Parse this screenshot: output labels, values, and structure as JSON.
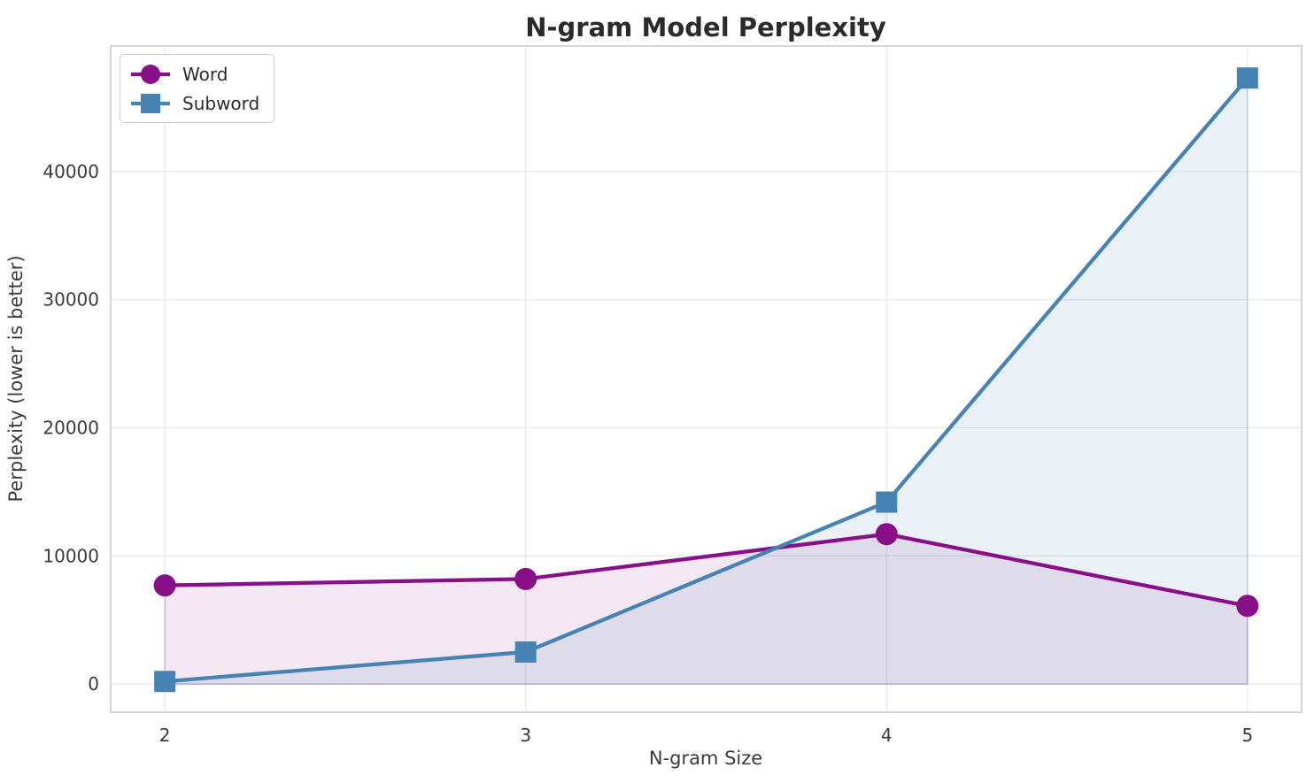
{
  "chart_data": {
    "type": "line",
    "title": "N-gram Model Perplexity",
    "xlabel": "N-gram Size",
    "ylabel": "Perplexity (lower is better)",
    "categories": [
      2,
      3,
      4,
      5
    ],
    "x_tick_labels": [
      "2",
      "3",
      "4",
      "5"
    ],
    "y_ticks": [
      0,
      10000,
      20000,
      30000,
      40000
    ],
    "y_tick_labels": [
      "0",
      "10000",
      "20000",
      "30000",
      "40000"
    ],
    "xlim": [
      1.85,
      5.15
    ],
    "ylim": [
      -2200,
      49800
    ],
    "grid": true,
    "legend_position": "upper-left",
    "legend_entries": [
      "Word",
      "Subword"
    ],
    "series": [
      {
        "name": "Word",
        "marker": "circle",
        "color": "#880f88",
        "fill_opacity": 0.1,
        "values": [
          7700,
          8200,
          11700,
          6100
        ]
      },
      {
        "name": "Subword",
        "marker": "square",
        "color": "#4682b4",
        "fill_opacity": 0.12,
        "values": [
          200,
          2500,
          14200,
          47300
        ]
      }
    ],
    "style": {
      "background": "#ffffff",
      "grid_color": "#e9e9ec",
      "spine_color": "#c9c9cd",
      "title_color": "#2b2b2b",
      "text_color": "#3a3a3a"
    }
  }
}
